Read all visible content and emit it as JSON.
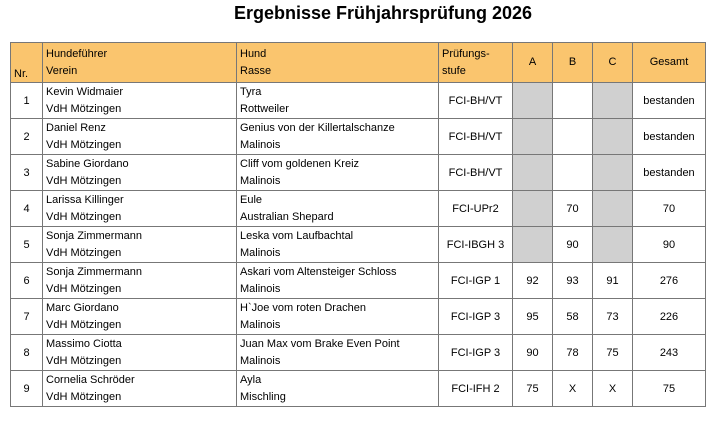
{
  "header": {
    "title": "Ergebnisse Frühjahrsprüfung 2026"
  },
  "table": {
    "columns": {
      "nr": "Nr.",
      "handler": [
        "Hundeführer",
        "Verein"
      ],
      "dog": [
        "Hund",
        "Rasse"
      ],
      "level": [
        "Prüfungs-",
        "stufe"
      ],
      "a": "A",
      "b": "B",
      "c": "C",
      "total": "Gesamt"
    },
    "rows": [
      {
        "nr": 1,
        "handler": "Kevin Widmaier",
        "club": "VdH Mötzingen",
        "dog": "Tyra",
        "breed": "Rottweiler",
        "level": "FCI-BH/VT",
        "a": null,
        "b": null,
        "c": null,
        "total": "bestanden",
        "shaded": [
          "a",
          "c"
        ]
      },
      {
        "nr": 2,
        "handler": "Daniel Renz",
        "club": "VdH Mötzingen",
        "dog": "Genius von der Killertalschanze",
        "breed": "Malinois",
        "level": "FCI-BH/VT",
        "a": null,
        "b": null,
        "c": null,
        "total": "bestanden",
        "shaded": [
          "a",
          "c"
        ]
      },
      {
        "nr": 3,
        "handler": "Sabine Giordano",
        "club": "VdH Mötzingen",
        "dog": "Cliff vom goldenen Kreiz",
        "breed": "Malinois",
        "level": "FCI-BH/VT",
        "a": null,
        "b": null,
        "c": null,
        "total": "bestanden",
        "shaded": [
          "a",
          "c"
        ]
      },
      {
        "nr": 4,
        "handler": "Larissa Killinger",
        "club": "VdH Mötzingen",
        "dog": "Eule",
        "breed": "Australian Shepard",
        "level": "FCI-UPr2",
        "a": null,
        "b": 70,
        "c": null,
        "total": 70,
        "shaded": [
          "a",
          "c"
        ]
      },
      {
        "nr": 5,
        "handler": "Sonja Zimmermann",
        "club": "VdH Mötzingen",
        "dog": "Leska vom Laufbachtal",
        "breed": "Malinois",
        "level": "FCI-IBGH 3",
        "a": null,
        "b": 90,
        "c": null,
        "total": 90,
        "shaded": [
          "a",
          "c"
        ]
      },
      {
        "nr": 6,
        "handler": "Sonja Zimmermann",
        "club": "VdH Mötzingen",
        "dog": "Askari vom Altensteiger Schloss",
        "breed": "Malinois",
        "level": "FCI-IGP 1",
        "a": 92,
        "b": 93,
        "c": 91,
        "total": 276,
        "shaded": []
      },
      {
        "nr": 7,
        "handler": "Marc Giordano",
        "club": "VdH Mötzingen",
        "dog": "H`Joe vom roten Drachen",
        "breed": "Malinois",
        "level": "FCI-IGP 3",
        "a": 95,
        "b": 58,
        "c": 73,
        "total": 226,
        "shaded": []
      },
      {
        "nr": 8,
        "handler": "Massimo Ciotta",
        "club": "VdH Mötzingen",
        "dog": "Juan Max vom Brake Even Point",
        "breed": "Malinois",
        "level": "FCI-IGP 3",
        "a": 90,
        "b": 78,
        "c": 75,
        "total": 243,
        "shaded": []
      },
      {
        "nr": 9,
        "handler": "Cornelia Schröder",
        "club": "VdH Mötzingen",
        "dog": "Ayla",
        "breed": "Mischling",
        "level": "FCI-IFH 2",
        "a": 75,
        "b": "X",
        "c": "X",
        "total": 75,
        "shaded": []
      }
    ]
  }
}
